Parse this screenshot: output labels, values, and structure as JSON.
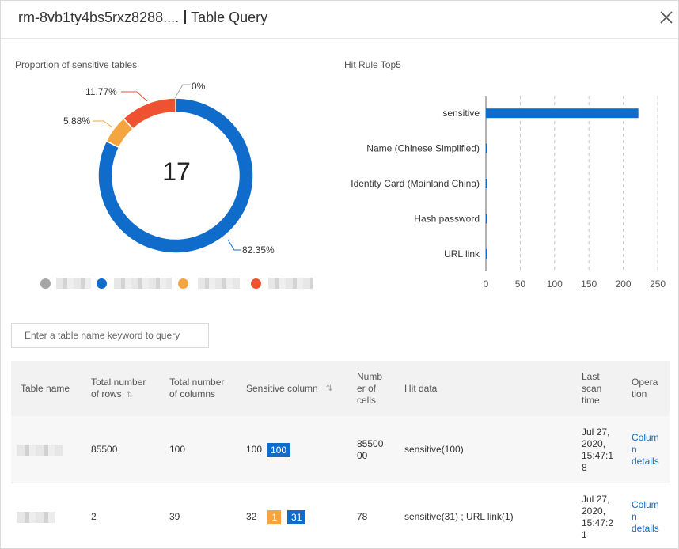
{
  "header": {
    "instance": "rm-8vb1ty4bs5rxz8288....",
    "title": "Table Query"
  },
  "donut": {
    "title": "Proportion of sensitive tables",
    "total": "17",
    "slices": [
      {
        "label": "82.35%",
        "value": 82.35,
        "color": "#0f6ccb"
      },
      {
        "label": "5.88%",
        "value": 5.88,
        "color": "#f5a540"
      },
      {
        "label": "11.77%",
        "value": 11.77,
        "color": "#ef5230"
      },
      {
        "label": "0%",
        "value": 0,
        "color": "#a6a6a6"
      }
    ],
    "legend_colors": [
      "#a6a6a6",
      "#0f6ccb",
      "#f5a540",
      "#ef5230"
    ]
  },
  "bar_chart": {
    "title": "Hit Rule Top5",
    "color": "#0f6ccb"
  },
  "chart_data": {
    "type": "bar",
    "orientation": "horizontal",
    "title": "Hit Rule Top5",
    "categories": [
      "sensitive",
      "Name (Chinese Simplified)",
      "Identity Card (Mainland China)",
      "Hash password",
      "URL link"
    ],
    "values": [
      222,
      1,
      1,
      1,
      1
    ],
    "xlim": [
      0,
      250
    ],
    "xticks": [
      "0",
      "50",
      "100",
      "150",
      "200",
      "250"
    ],
    "grid": true
  },
  "search": {
    "placeholder": "Enter a table name keyword to query"
  },
  "table": {
    "headers": {
      "name": "Table name",
      "rows_line1": "Total number",
      "rows_line2": "of rows",
      "cols_line1": "Total number",
      "cols_line2": "of columns",
      "sensitive": "Sensitive column",
      "cells_line1": "Numb",
      "cells_line2": "er of",
      "cells_line3": "cells",
      "hit": "Hit data",
      "scan_line1": "Last",
      "scan_line2": "scan",
      "scan_line3": "time",
      "op_line1": "Opera",
      "op_line2": "tion"
    },
    "rows": [
      {
        "rows": "85500",
        "cols": "100",
        "sensitive": "100",
        "badge_blue": "100",
        "cells_line1": "85500",
        "cells_line2": "00",
        "hit": "sensitive(100)",
        "scan_line1": "Jul 27,",
        "scan_line2": "2020,",
        "scan_line3": "15:47:1",
        "scan_line4": "8",
        "op_line1": "Colum",
        "op_line2": "n",
        "op_line3": "details"
      },
      {
        "rows": "2",
        "cols": "39",
        "sensitive": "32",
        "badge_orange": "1",
        "badge_blue": "31",
        "cells_line1": "78",
        "hit": "sensitive(31) ; URL link(1)",
        "scan_line1": "Jul 27,",
        "scan_line2": "2020,",
        "scan_line3": "15:47:2",
        "scan_line4": "1",
        "op_line1": "Colum",
        "op_line2": "n",
        "op_line3": "details"
      }
    ]
  }
}
